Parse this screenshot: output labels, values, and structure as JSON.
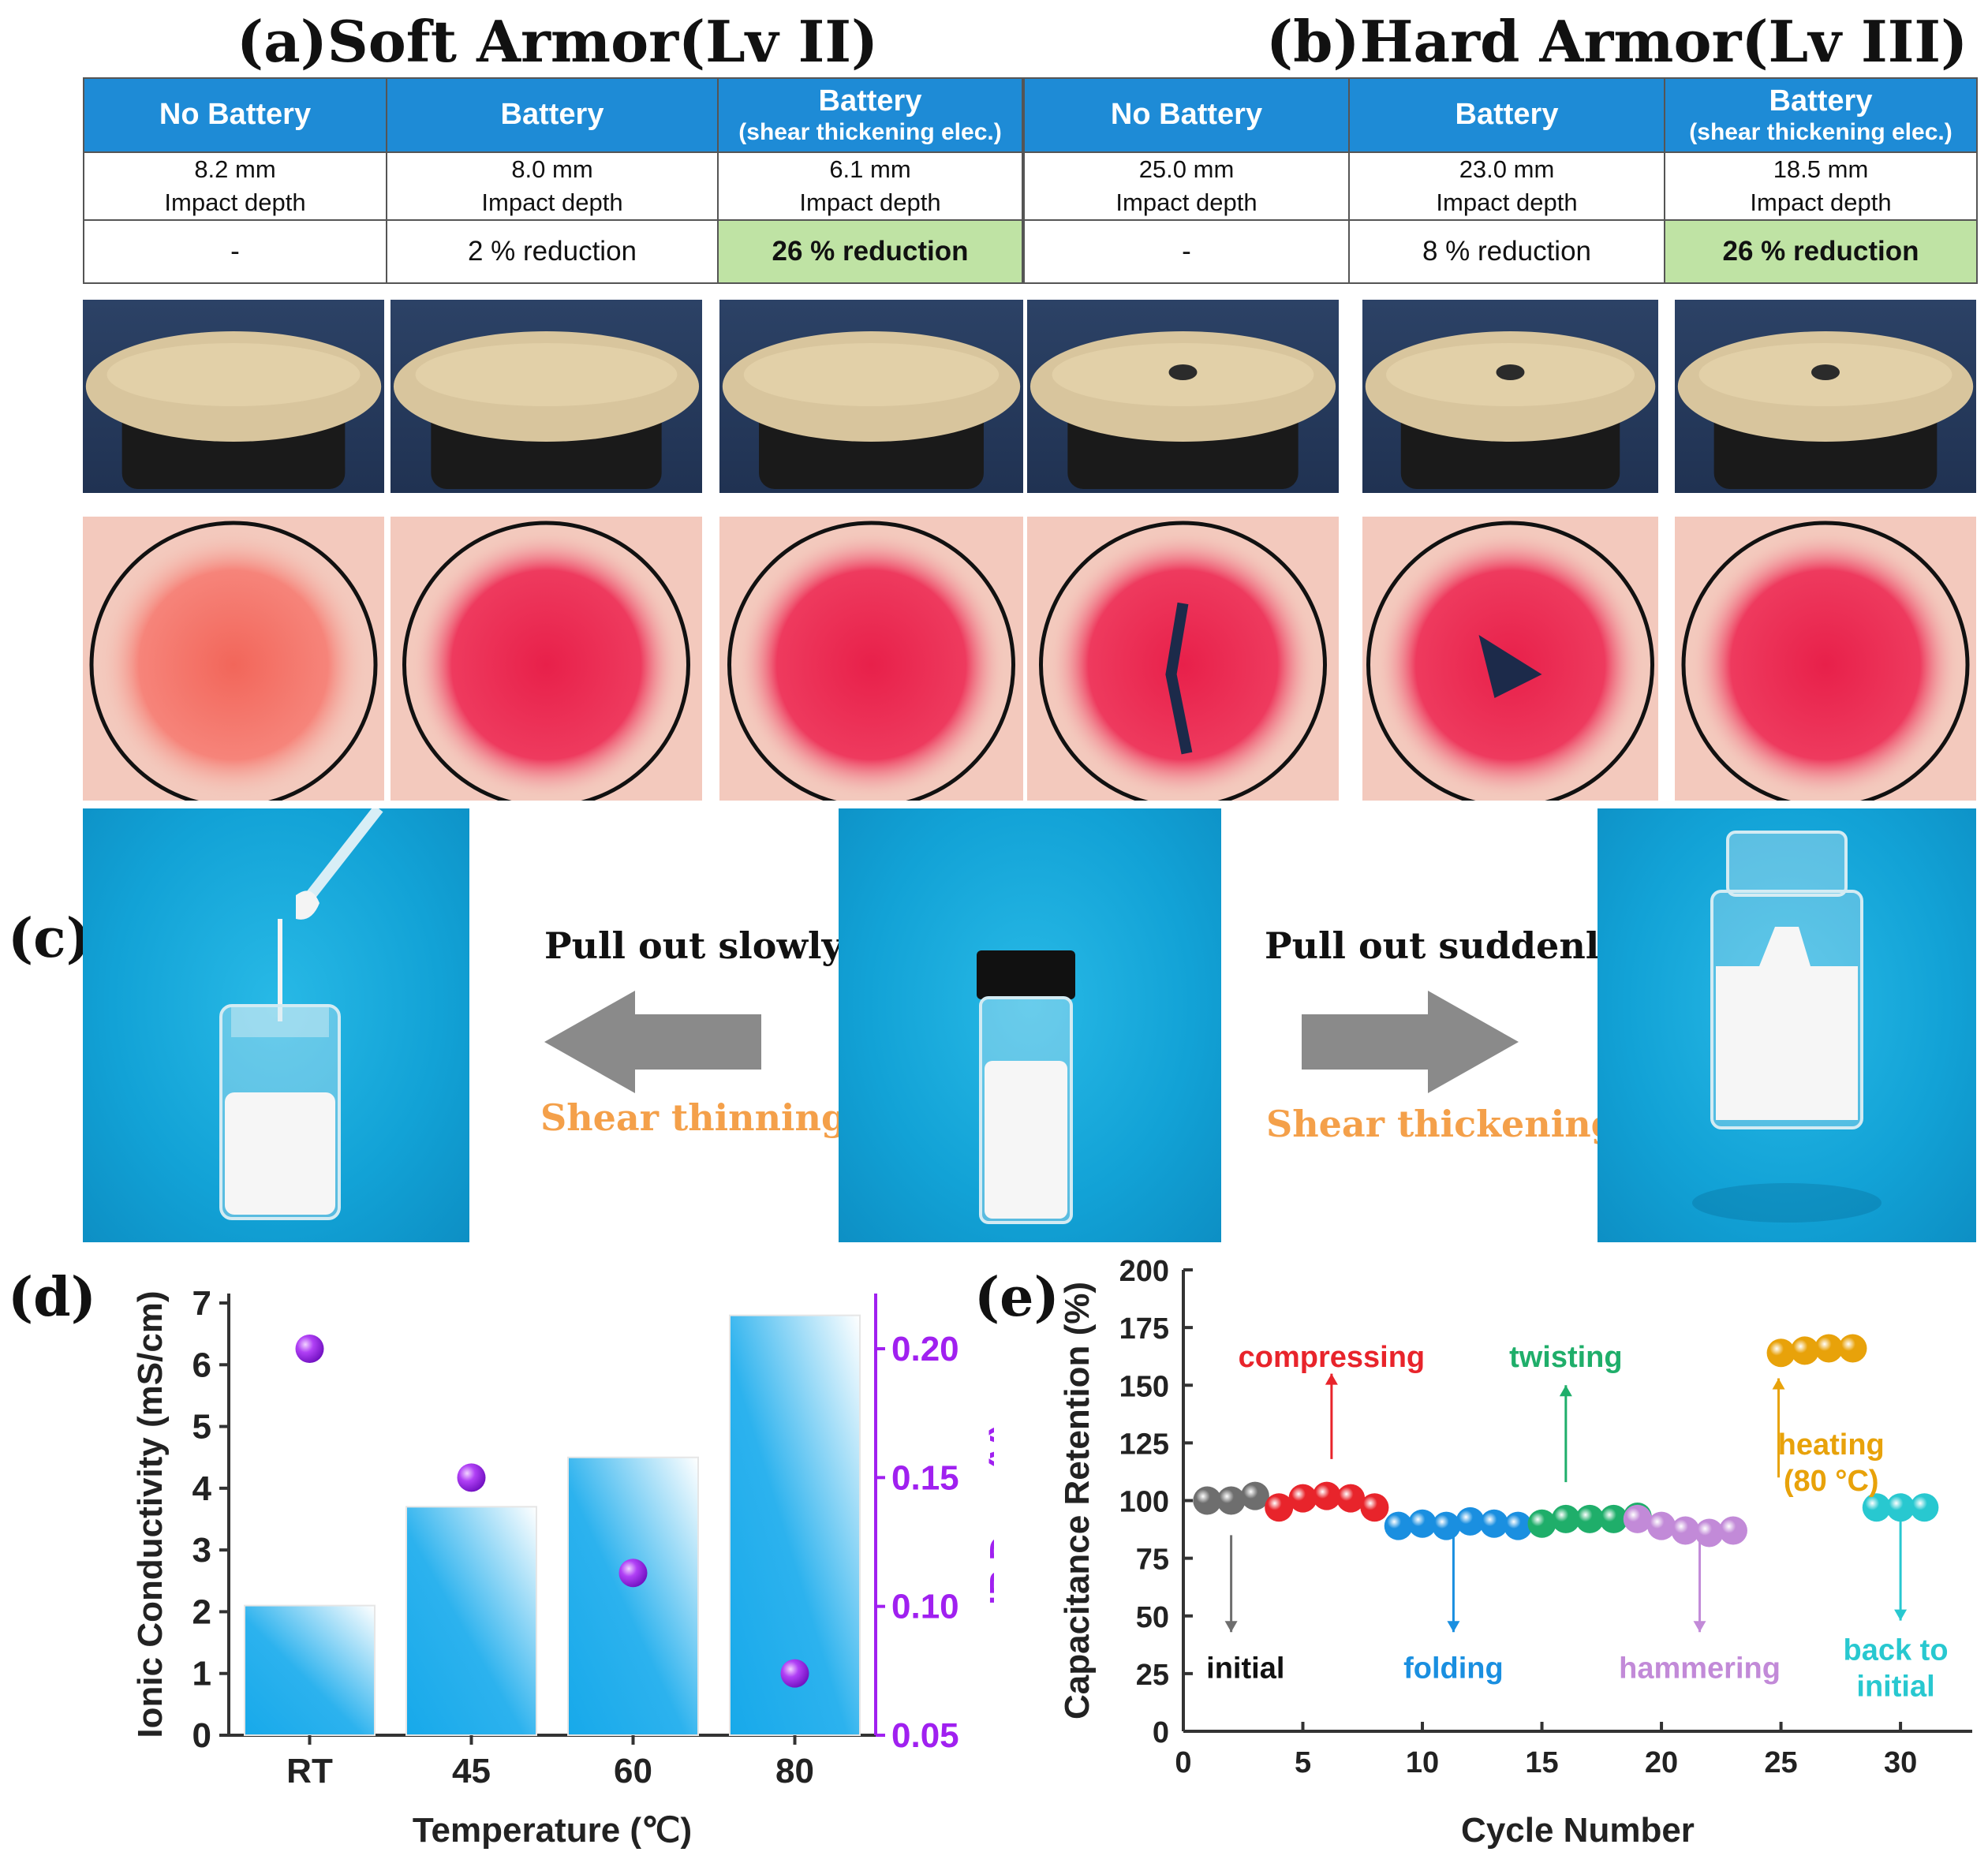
{
  "panels": {
    "a": {
      "title": "(a)Soft Armor(Lv II)"
    },
    "b": {
      "title": "(b)Hard Armor(Lv III)"
    },
    "c": {
      "label": "(c)"
    },
    "d": {
      "label": "(d)"
    },
    "e": {
      "label": "(e)"
    }
  },
  "armor_table": {
    "soft": [
      {
        "header": "No Battery",
        "sub": "",
        "depth": "8.2 mm",
        "depth_label": "Impact depth",
        "reduction": "-",
        "highlight": false
      },
      {
        "header": "Battery",
        "sub": "",
        "depth": "8.0 mm",
        "depth_label": "Impact depth",
        "reduction": "2 % reduction",
        "highlight": false
      },
      {
        "header": "Battery",
        "sub": "(shear thickening elec.)",
        "depth": "6.1 mm",
        "depth_label": "Impact depth",
        "reduction": "26 % reduction",
        "highlight": true
      }
    ],
    "hard": [
      {
        "header": "No Battery",
        "sub": "",
        "depth": "25.0 mm",
        "depth_label": "Impact depth",
        "reduction": "-",
        "highlight": false
      },
      {
        "header": "Battery",
        "sub": "",
        "depth": "23.0 mm",
        "depth_label": "Impact depth",
        "reduction": "8 % reduction",
        "highlight": false
      },
      {
        "header": "Battery",
        "sub": "(shear thickening elec.)",
        "depth": "18.5 mm",
        "depth_label": "Impact depth",
        "reduction": "26 % reduction",
        "highlight": true
      }
    ]
  },
  "panel_c": {
    "left_text": "Pull out slowly",
    "left_effect": "Shear thinning",
    "right_text": "Pull out suddenly",
    "right_effect": "Shear thickening"
  },
  "colors": {
    "header_blue": "#1e8bd6",
    "highlight_green": "#bfe3a4",
    "bar_blue": "#17a9ea",
    "purple": "#a020f0",
    "effect_orange": "#f4a04a"
  },
  "chart_data": [
    {
      "type": "bar",
      "categories": [
        "RT",
        "45",
        "60",
        "80"
      ],
      "series": [
        {
          "name": "Ionic Conductivity (mS/cm)",
          "axis": "left",
          "kind": "bar",
          "values": [
            2.1,
            3.7,
            4.5,
            6.8
          ]
        },
        {
          "name": "IR Drop (V)",
          "axis": "right",
          "kind": "scatter",
          "values": [
            0.2,
            0.15,
            0.113,
            0.074
          ]
        }
      ],
      "xlabel": "Temperature (℃)",
      "ylabel": "Ionic Conductivity (mS/cm)",
      "y2label": "IR Drop (V)",
      "ylim": [
        0,
        7
      ],
      "y2lim": [
        0.05,
        0.2
      ],
      "yticks": [
        "0",
        "1",
        "2",
        "3",
        "4",
        "5",
        "6",
        "7"
      ],
      "y2ticks": [
        "0.05",
        "0.10",
        "0.15",
        "0.20"
      ]
    },
    {
      "type": "scatter",
      "xlabel": "Cycle Number",
      "ylabel": "Capacitance Retention (%)",
      "xlim": [
        0,
        33
      ],
      "ylim": [
        0,
        200
      ],
      "xticks": [
        "0",
        "5",
        "10",
        "15",
        "20",
        "25",
        "30"
      ],
      "yticks": [
        "0",
        "25",
        "50",
        "75",
        "100",
        "125",
        "150",
        "175",
        "200"
      ],
      "series": [
        {
          "name": "initial",
          "color": "#6e6e6e",
          "x": [
            1,
            2,
            3
          ],
          "y": [
            100,
            100,
            102
          ]
        },
        {
          "name": "compressing",
          "color": "#e8242b",
          "x": [
            4,
            5,
            6,
            7,
            8
          ],
          "y": [
            97,
            101,
            102,
            101,
            97
          ]
        },
        {
          "name": "folding",
          "color": "#1a8fe0",
          "x": [
            9,
            10,
            11,
            12,
            13,
            14
          ],
          "y": [
            89,
            90,
            89,
            91,
            90,
            89
          ]
        },
        {
          "name": "twisting",
          "color": "#1fae6a",
          "x": [
            15,
            16,
            17,
            18,
            19
          ],
          "y": [
            90,
            92,
            92,
            92,
            93
          ]
        },
        {
          "name": "hammering",
          "color": "#c28ad8",
          "x": [
            19,
            20,
            21,
            22,
            23
          ],
          "y": [
            92,
            89,
            87,
            86,
            87
          ]
        },
        {
          "name": "heating (80 °C)",
          "color": "#e8a20a",
          "x": [
            25,
            26,
            27,
            28
          ],
          "y": [
            164,
            165,
            166,
            166
          ]
        },
        {
          "name": "back to initial",
          "color": "#28c8d0",
          "x": [
            29,
            30,
            31
          ],
          "y": [
            97,
            97,
            97
          ]
        }
      ],
      "annotations": [
        {
          "text": "initial",
          "series": "initial"
        },
        {
          "text": "compressing",
          "series": "compressing"
        },
        {
          "text": "folding",
          "series": "folding"
        },
        {
          "text": "twisting",
          "series": "twisting"
        },
        {
          "text": "hammering",
          "series": "hammering"
        },
        {
          "text": "heating",
          "text2": "(80 °C)",
          "series": "heating (80 °C)"
        },
        {
          "text": "back to",
          "text2": "initial",
          "series": "back to initial"
        }
      ]
    }
  ]
}
